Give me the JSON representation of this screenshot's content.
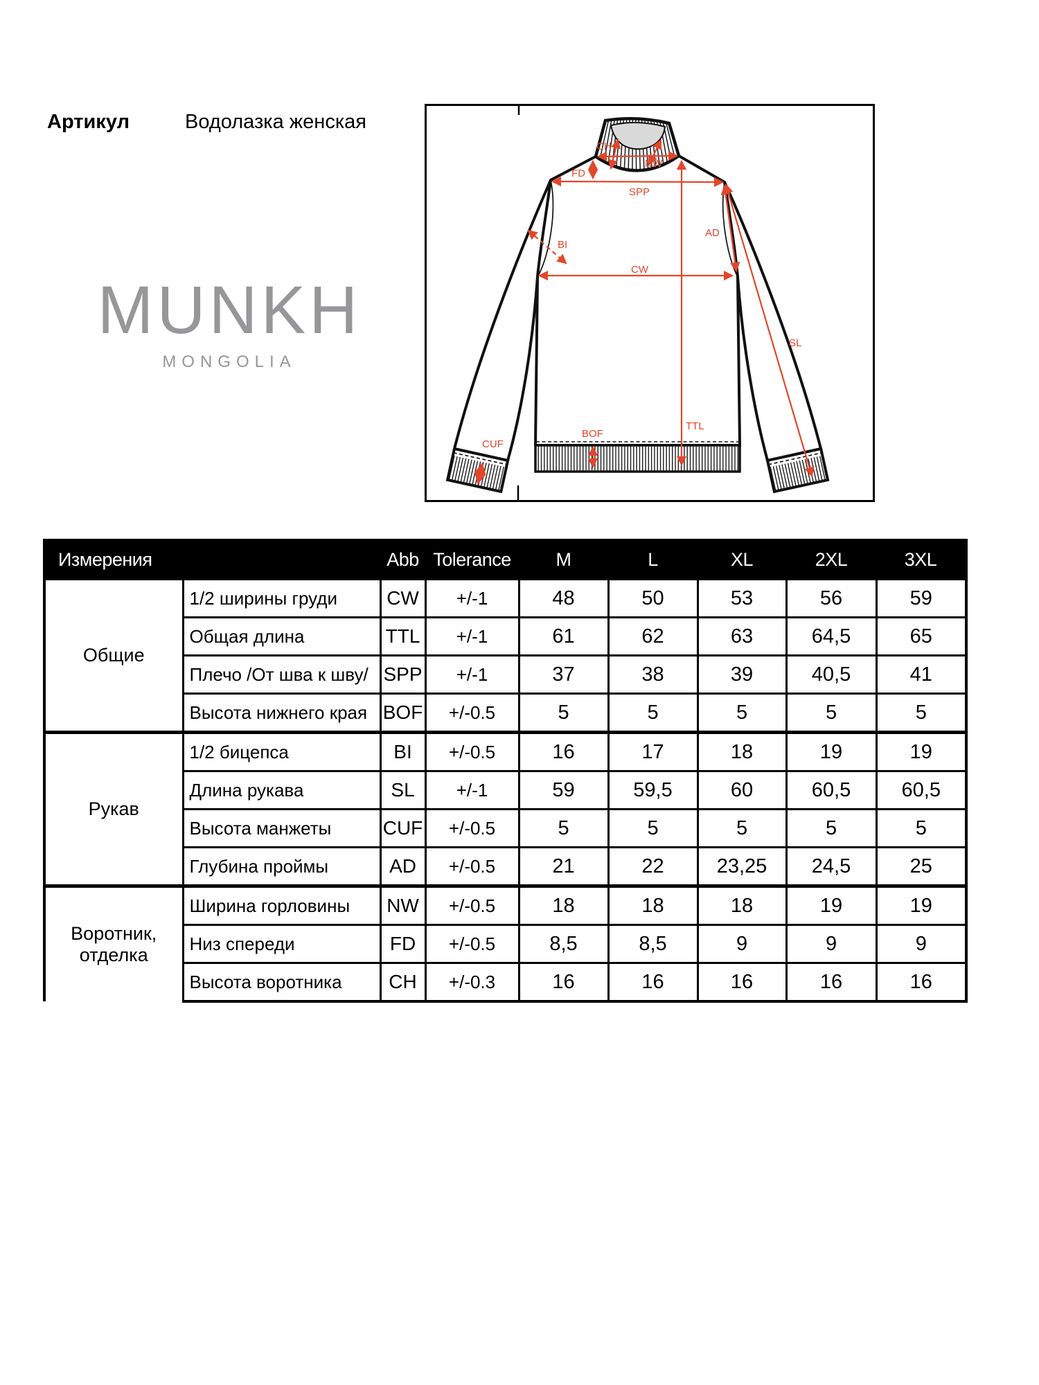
{
  "page": {
    "article_label": "Артикул",
    "article_value": "Водолазка женская"
  },
  "logo": {
    "brand": "MUNKH",
    "country": "MONGOLIA"
  },
  "diagram": {
    "labels": {
      "ch": "CH",
      "nw": "NW",
      "fd": "FD",
      "spp": "SPP",
      "bi": "BI",
      "cw": "CW",
      "ad": "AD",
      "sl": "SL",
      "ttl": "TTL",
      "bof": "BOF",
      "cuf": "CUF"
    }
  },
  "table": {
    "headers": {
      "measurements": "Измерения",
      "abb": "Abb",
      "tolerance": "Tolerance",
      "sizes": [
        "M",
        "L",
        "XL",
        "2XL",
        "3XL"
      ]
    },
    "groups": [
      {
        "name": "Общие",
        "rows": [
          {
            "name": "1/2 ширины груди",
            "abb": "CW",
            "tol": "+/-1",
            "values": [
              "48",
              "50",
              "53",
              "56",
              "59"
            ]
          },
          {
            "name": "Общая длина",
            "abb": "TTL",
            "tol": "+/-1",
            "values": [
              "61",
              "62",
              "63",
              "64,5",
              "65"
            ]
          },
          {
            "name": "Плечо /От шва к шву/",
            "abb": "SPP",
            "tol": "+/-1",
            "values": [
              "37",
              "38",
              "39",
              "40,5",
              "41"
            ]
          },
          {
            "name": "Высота нижнего края",
            "abb": "BOF",
            "tol": "+/-0.5",
            "values": [
              "5",
              "5",
              "5",
              "5",
              "5"
            ]
          }
        ]
      },
      {
        "name": "Рукав",
        "rows": [
          {
            "name": "1/2 бицепса",
            "abb": "BI",
            "tol": "+/-0.5",
            "values": [
              "16",
              "17",
              "18",
              "19",
              "19"
            ]
          },
          {
            "name": "Длина рукава",
            "abb": "SL",
            "tol": "+/-1",
            "values": [
              "59",
              "59,5",
              "60",
              "60,5",
              "60,5"
            ]
          },
          {
            "name": "Высота манжеты",
            "abb": "CUF",
            "tol": "+/-0.5",
            "values": [
              "5",
              "5",
              "5",
              "5",
              "5"
            ]
          },
          {
            "name": "Глубина проймы",
            "abb": "AD",
            "tol": "+/-0.5",
            "values": [
              "21",
              "22",
              "23,25",
              "24,5",
              "25"
            ]
          }
        ]
      },
      {
        "name": "Воротник, отделка",
        "rows": [
          {
            "name": "Ширина горловины",
            "abb": "NW",
            "tol": "+/-0.5",
            "values": [
              "18",
              "18",
              "18",
              "19",
              "19"
            ]
          },
          {
            "name": "Низ спереди",
            "abb": "FD",
            "tol": "+/-0.5",
            "values": [
              "8,5",
              "8,5",
              "9",
              "9",
              "9"
            ]
          },
          {
            "name": "Высота воротника",
            "abb": "CH",
            "tol": "+/-0.3",
            "values": [
              "16",
              "16",
              "16",
              "16",
              "16"
            ]
          }
        ]
      }
    ]
  },
  "colors": {
    "annotation": "#e2472b",
    "logo_gray": "#97979a",
    "line_black": "#111111"
  }
}
